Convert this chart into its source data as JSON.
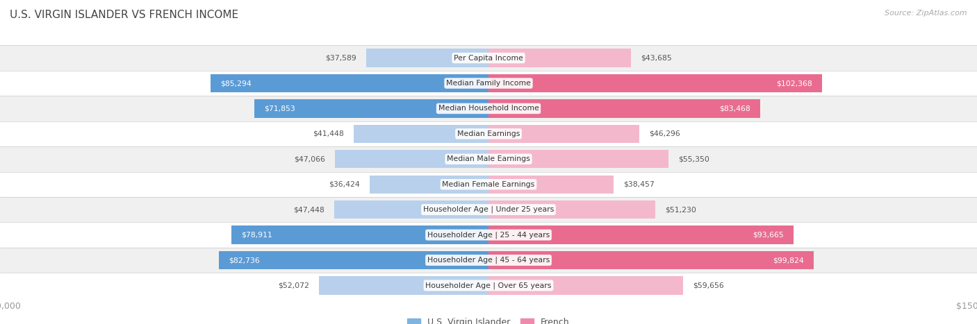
{
  "title": "U.S. VIRGIN ISLANDER VS FRENCH INCOME",
  "source": "Source: ZipAtlas.com",
  "categories": [
    "Per Capita Income",
    "Median Family Income",
    "Median Household Income",
    "Median Earnings",
    "Median Male Earnings",
    "Median Female Earnings",
    "Householder Age | Under 25 years",
    "Householder Age | 25 - 44 years",
    "Householder Age | 45 - 64 years",
    "Householder Age | Over 65 years"
  ],
  "virgin_islander": [
    37589,
    85294,
    71853,
    41448,
    47066,
    36424,
    47448,
    78911,
    82736,
    52072
  ],
  "french": [
    43685,
    102368,
    83468,
    46296,
    55350,
    38457,
    51230,
    93665,
    99824,
    59656
  ],
  "vi_color_light": "#b8d0eb",
  "vi_color_dark": "#5b9bd5",
  "french_color_light": "#f4b8cc",
  "french_color_dark": "#e96c90",
  "max_val": 150000,
  "bg_even": "#f0f0f0",
  "bg_odd": "#ffffff",
  "title_color": "#444444",
  "legend_vi_color": "#7fb3e0",
  "legend_french_color": "#f08aac",
  "vi_dark_threshold": 60000,
  "fr_dark_threshold": 75000
}
